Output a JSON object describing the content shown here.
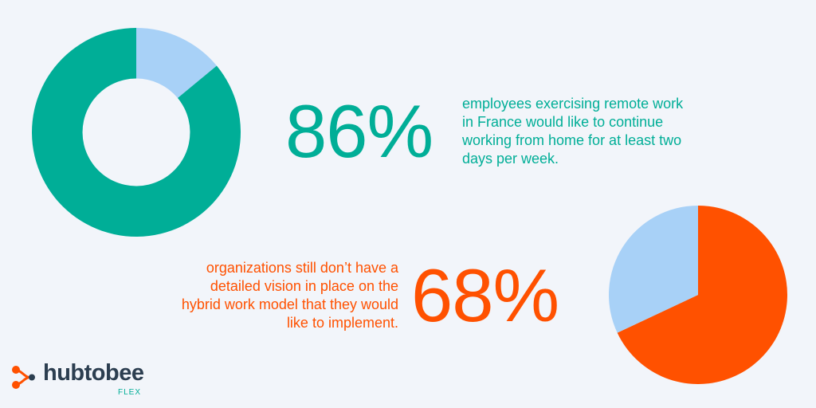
{
  "chart_data": [
    {
      "type": "pie",
      "variant": "donut",
      "slices": [
        {
          "value": 86,
          "color": "#00ae97"
        },
        {
          "value": 14,
          "color": "#a8d1f7"
        }
      ],
      "stat": "86%",
      "description": "employees exercising remote work in France would like to continue working from home for at least two days per week."
    },
    {
      "type": "pie",
      "variant": "pie",
      "slices": [
        {
          "value": 68,
          "color": "#ff5100"
        },
        {
          "value": 32,
          "color": "#a8d1f7"
        }
      ],
      "stat": "68%",
      "description": "organizations still don’t have a detailed vision in place on the hybrid work model that they would like to implement."
    }
  ],
  "logo": {
    "name": "hubtobee",
    "subtitle": "FLEX",
    "name_color": "#2c3e50",
    "accent_color": "#ff5100",
    "sub_color": "#00ae97"
  },
  "colors": {
    "background": "#f2f5fa",
    "teal": "#00ae97",
    "orange": "#ff5100",
    "light_blue": "#a8d1f7"
  }
}
